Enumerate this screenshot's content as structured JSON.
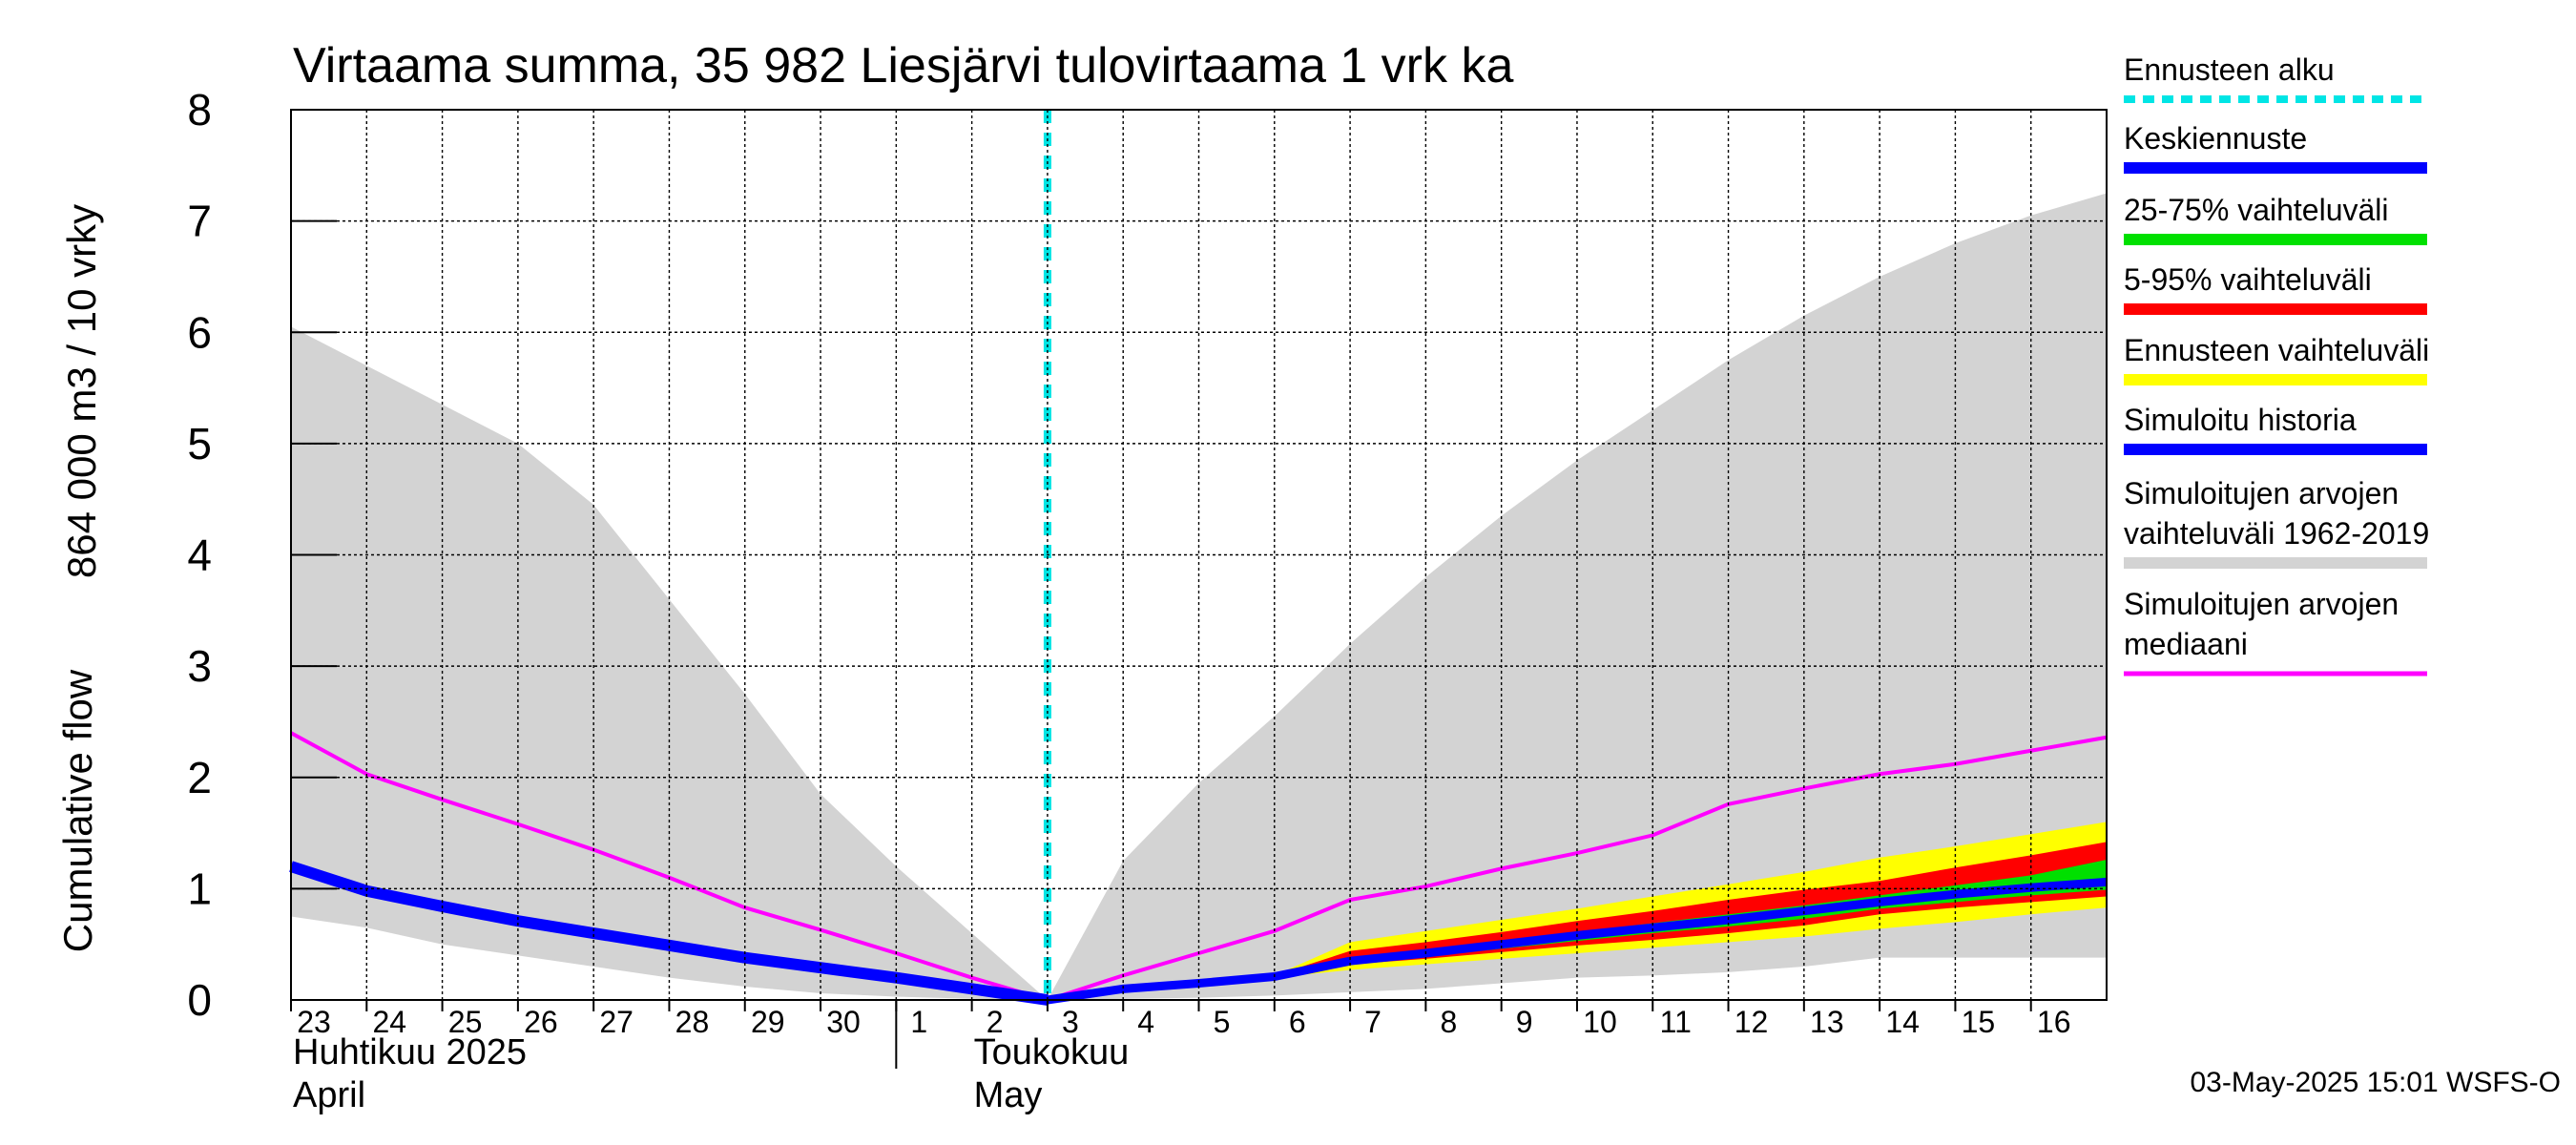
{
  "chart_data": {
    "type": "area",
    "title": "Virtaama summa, 35 982 Liesjärvi tulovirtaama 1 vrk ka",
    "ylabel_line1": "864 000 m3 / 10 vrky",
    "ylabel_line2": "Cumulative flow",
    "yticks": [
      "0",
      "1",
      "2",
      "3",
      "4",
      "5",
      "6",
      "7",
      "8"
    ],
    "ylim": [
      0,
      8
    ],
    "xlim": [
      0,
      24
    ],
    "xticks": [
      "23",
      "24",
      "25",
      "26",
      "27",
      "28",
      "29",
      "30",
      "1",
      "2",
      "3",
      "4",
      "5",
      "6",
      "7",
      "8",
      "9",
      "10",
      "11",
      "12",
      "13",
      "14",
      "15",
      "16"
    ],
    "month_labels": {
      "april_fi": "Huhtikuu  2025",
      "april_en": "April",
      "may_fi": "Toukokuu",
      "may_en": "May"
    },
    "forecast_start_x": 10,
    "grid": true,
    "legend_position": "right",
    "colors": {
      "forecast_start": "#00e5e5",
      "mean_forecast": "#0000ff",
      "range_25_75": "#00e000",
      "range_5_95": "#ff0000",
      "forecast_range": "#ffff00",
      "simulated_history": "#0000ff",
      "history_range": "#d3d3d3",
      "history_median": "#ff00ff"
    },
    "series": {
      "history_range_upper": {
        "x": [
          0,
          1,
          2,
          3,
          4,
          5,
          6,
          7,
          8,
          9,
          10,
          11,
          12,
          13,
          14,
          15,
          16,
          17,
          18,
          19,
          20,
          21,
          22,
          23,
          24
        ],
        "y": [
          6.05,
          5.7,
          5.35,
          5.0,
          4.45,
          3.6,
          2.75,
          1.85,
          1.2,
          0.6,
          0.0,
          1.25,
          1.95,
          2.55,
          3.2,
          3.8,
          4.35,
          4.85,
          5.3,
          5.75,
          6.15,
          6.5,
          6.8,
          7.05,
          7.25
        ]
      },
      "history_range_lower": {
        "x": [
          0,
          1,
          2,
          3,
          4,
          5,
          6,
          7,
          8,
          9,
          10,
          11,
          12,
          13,
          14,
          15,
          16,
          17,
          18,
          19,
          20,
          21,
          22,
          23,
          24
        ],
        "y": [
          0.75,
          0.65,
          0.5,
          0.4,
          0.3,
          0.2,
          0.12,
          0.06,
          0.03,
          0.01,
          0.0,
          0.01,
          0.02,
          0.04,
          0.07,
          0.1,
          0.15,
          0.2,
          0.22,
          0.25,
          0.3,
          0.38,
          0.38,
          0.38,
          0.38
        ]
      },
      "history_median": {
        "x": [
          0,
          1,
          2,
          3,
          4,
          5,
          6,
          7,
          8,
          9,
          10,
          11,
          12,
          13,
          14,
          15,
          16,
          17,
          18,
          19,
          20,
          21,
          22,
          23,
          24
        ],
        "y": [
          2.4,
          2.03,
          1.8,
          1.58,
          1.35,
          1.1,
          0.83,
          0.63,
          0.42,
          0.2,
          0.0,
          0.22,
          0.42,
          0.62,
          0.9,
          1.02,
          1.18,
          1.32,
          1.48,
          1.76,
          1.9,
          2.03,
          2.12,
          2.24,
          2.36
        ]
      },
      "simulated_history": {
        "x": [
          0,
          1,
          2,
          3,
          4,
          5,
          6,
          7,
          8,
          9,
          10
        ],
        "y": [
          1.2,
          0.98,
          0.84,
          0.71,
          0.6,
          0.49,
          0.38,
          0.29,
          0.2,
          0.1,
          0.0
        ]
      },
      "forecast_range_upper": {
        "x": [
          10,
          11,
          12,
          13,
          14,
          15,
          16,
          17,
          18,
          19,
          20,
          21,
          22,
          23,
          24
        ],
        "y": [
          0.0,
          0.1,
          0.15,
          0.22,
          0.52,
          0.62,
          0.72,
          0.82,
          0.93,
          1.04,
          1.15,
          1.28,
          1.38,
          1.49,
          1.6
        ]
      },
      "forecast_range_lower": {
        "x": [
          10,
          11,
          12,
          13,
          14,
          15,
          16,
          17,
          18,
          19,
          20,
          21,
          22,
          23,
          24
        ],
        "y": [
          0.0,
          0.1,
          0.15,
          0.2,
          0.27,
          0.32,
          0.37,
          0.42,
          0.47,
          0.52,
          0.57,
          0.64,
          0.7,
          0.77,
          0.83
        ]
      },
      "range_5_95_upper": {
        "x": [
          10,
          11,
          12,
          13,
          14,
          15,
          16,
          17,
          18,
          19,
          20,
          21,
          22,
          23,
          24
        ],
        "y": [
          0.0,
          0.1,
          0.15,
          0.22,
          0.44,
          0.52,
          0.61,
          0.71,
          0.8,
          0.9,
          0.99,
          1.07,
          1.19,
          1.3,
          1.42
        ]
      },
      "range_5_95_lower": {
        "x": [
          10,
          11,
          12,
          13,
          14,
          15,
          16,
          17,
          18,
          19,
          20,
          21,
          22,
          23,
          24
        ],
        "y": [
          0.0,
          0.1,
          0.15,
          0.2,
          0.32,
          0.37,
          0.43,
          0.49,
          0.54,
          0.6,
          0.67,
          0.77,
          0.83,
          0.88,
          0.93
        ]
      },
      "range_25_75_upper": {
        "x": [
          10,
          11,
          12,
          13,
          14,
          15,
          16,
          17,
          18,
          19,
          20,
          21,
          22,
          23,
          24
        ],
        "y": [
          0.0,
          0.1,
          0.15,
          0.21,
          0.38,
          0.45,
          0.53,
          0.61,
          0.69,
          0.77,
          0.85,
          0.94,
          1.03,
          1.12,
          1.26
        ]
      },
      "range_25_75_lower": {
        "x": [
          10,
          11,
          12,
          13,
          14,
          15,
          16,
          17,
          18,
          19,
          20,
          21,
          22,
          23,
          24
        ],
        "y": [
          0.0,
          0.1,
          0.15,
          0.2,
          0.33,
          0.39,
          0.46,
          0.53,
          0.6,
          0.66,
          0.73,
          0.82,
          0.88,
          0.94,
          0.99
        ]
      },
      "mean_forecast": {
        "x": [
          10,
          11,
          12,
          13,
          14,
          15,
          16,
          17,
          18,
          19,
          20,
          21,
          22,
          23,
          24
        ],
        "y": [
          0.0,
          0.1,
          0.15,
          0.21,
          0.35,
          0.42,
          0.5,
          0.58,
          0.65,
          0.72,
          0.8,
          0.88,
          0.95,
          1.01,
          1.06
        ]
      }
    },
    "legend": [
      {
        "label": "Ennusteen alku",
        "color_key": "forecast_start",
        "style": "dashed"
      },
      {
        "label": "Keskiennuste",
        "color_key": "mean_forecast",
        "style": "solid"
      },
      {
        "label": "25-75% vaihteluväli",
        "color_key": "range_25_75",
        "style": "solid"
      },
      {
        "label": "5-95% vaihteluväli",
        "color_key": "range_5_95",
        "style": "solid"
      },
      {
        "label": "Ennusteen vaihteluväli",
        "color_key": "forecast_range",
        "style": "solid"
      },
      {
        "label": "Simuloitu historia",
        "color_key": "simulated_history",
        "style": "solid"
      },
      {
        "label": "Simuloitujen arvojen\nvaihteluväli 1962-2019",
        "color_key": "history_range",
        "style": "solid"
      },
      {
        "label": "Simuloitujen arvojen\nmediaani",
        "color_key": "history_median",
        "style": "thin"
      }
    ],
    "footer": "03-May-2025 15:01 WSFS-O"
  }
}
